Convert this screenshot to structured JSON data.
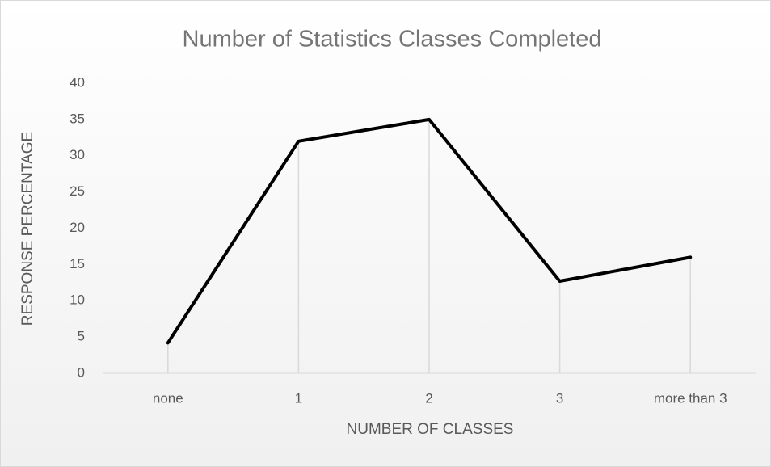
{
  "chart_data": {
    "type": "line",
    "title": "Number of Statistics Classes Completed",
    "x_label": "NUMBER OF CLASSES",
    "y_label": "RESPONSE PERCENTAGE",
    "categories": [
      "none",
      "1",
      "2",
      "3",
      "more than 3"
    ],
    "series": [
      {
        "name": "Response percentage",
        "color": "#000000",
        "values": [
          4.2,
          32,
          35,
          12.7,
          16
        ]
      }
    ],
    "ylim": [
      0,
      40
    ],
    "yticks": [
      0,
      5,
      10,
      15,
      20,
      25,
      30,
      35,
      40
    ],
    "drop_lines": true
  }
}
